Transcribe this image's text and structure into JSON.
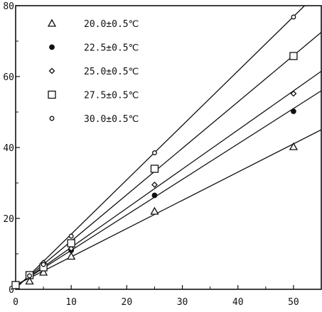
{
  "chart_data": {
    "type": "scatter",
    "title": "",
    "xlabel": "",
    "ylabel": "",
    "xlim": [
      0,
      55
    ],
    "ylim": [
      0,
      80
    ],
    "x_ticks": [
      0,
      10,
      20,
      30,
      40,
      50
    ],
    "y_ticks": [
      0,
      20,
      40,
      60,
      80
    ],
    "grid": false,
    "legend_position": "top-left",
    "series": [
      {
        "name": "20.0±0.5℃",
        "marker": "triangle-open",
        "x": [
          2.5,
          5,
          10,
          25,
          50
        ],
        "y": [
          2.3,
          4.8,
          9.3,
          22,
          40.2
        ],
        "fit": [
          [
            0,
            1.2
          ],
          [
            55,
            45
          ]
        ]
      },
      {
        "name": "22.5±0.5℃",
        "marker": "circle-filled",
        "x": [
          2.5,
          5,
          10,
          25,
          50
        ],
        "y": [
          3.7,
          6.3,
          11,
          26.5,
          50.2
        ],
        "fit": [
          [
            0,
            1
          ],
          [
            55,
            56
          ]
        ]
      },
      {
        "name": "25.0±0.5℃",
        "marker": "diamond-open",
        "x": [
          2.5,
          5,
          10,
          25,
          50
        ],
        "y": [
          4,
          7.5,
          11.5,
          29.5,
          55.2
        ],
        "fit": [
          [
            0,
            0.8
          ],
          [
            55,
            61.5
          ]
        ]
      },
      {
        "name": "27.5±0.5℃",
        "marker": "square-open",
        "x": [
          0,
          2.5,
          5,
          10,
          25,
          50
        ],
        "y": [
          1.2,
          4,
          6.2,
          13,
          34,
          65.8
        ],
        "fit": [
          [
            0,
            0.5
          ],
          [
            55,
            72.5
          ]
        ]
      },
      {
        "name": "30.0±0.5℃",
        "marker": "circle-open",
        "x": [
          2.5,
          5,
          10,
          25,
          50
        ],
        "y": [
          3.8,
          7,
          15,
          38.5,
          76.8
        ],
        "fit": [
          [
            0,
            0.2
          ],
          [
            52,
            80
          ]
        ]
      }
    ]
  }
}
